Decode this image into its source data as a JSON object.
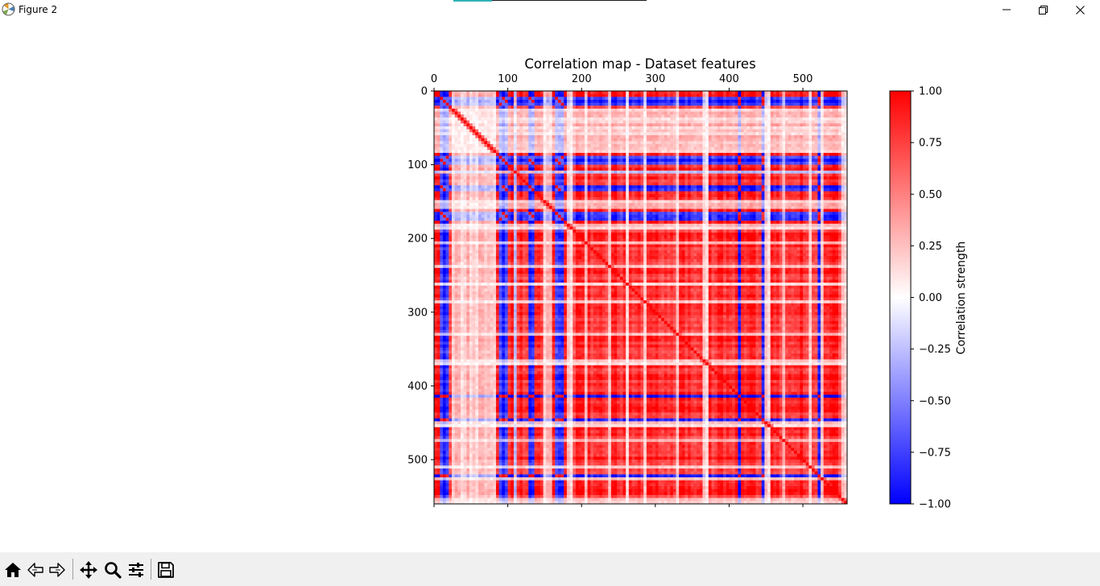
{
  "window": {
    "title": "Figure 2",
    "accent_color": "#2fb3b8"
  },
  "window_controls": [
    "minimize-icon",
    "restore-icon",
    "close-icon"
  ],
  "toolbar": {
    "tools": [
      "home-icon",
      "back-icon",
      "forward-icon",
      "pan-icon",
      "zoom-icon",
      "configure-subplots-icon",
      "save-icon"
    ]
  },
  "chart_data": {
    "type": "heatmap",
    "title": "Correlation map - Dataset features",
    "x_ticks": [
      0,
      100,
      200,
      300,
      400,
      500
    ],
    "y_ticks": [
      0,
      100,
      200,
      300,
      400,
      500
    ],
    "x_range": [
      0,
      560
    ],
    "y_range": [
      0,
      560
    ],
    "tick_position": "top",
    "colorbar": {
      "label": "Correlation strength",
      "range": [
        -1.0,
        1.0
      ],
      "ticks": [
        "1.00",
        "0.75",
        "0.50",
        "0.25",
        "0.00",
        "−0.25",
        "−0.50",
        "−0.75",
        "−1.00"
      ],
      "colormap": "bwr",
      "colors": {
        "min": "#0000ff",
        "mid": "#ffffff",
        "max": "#ff0000"
      }
    }
  }
}
